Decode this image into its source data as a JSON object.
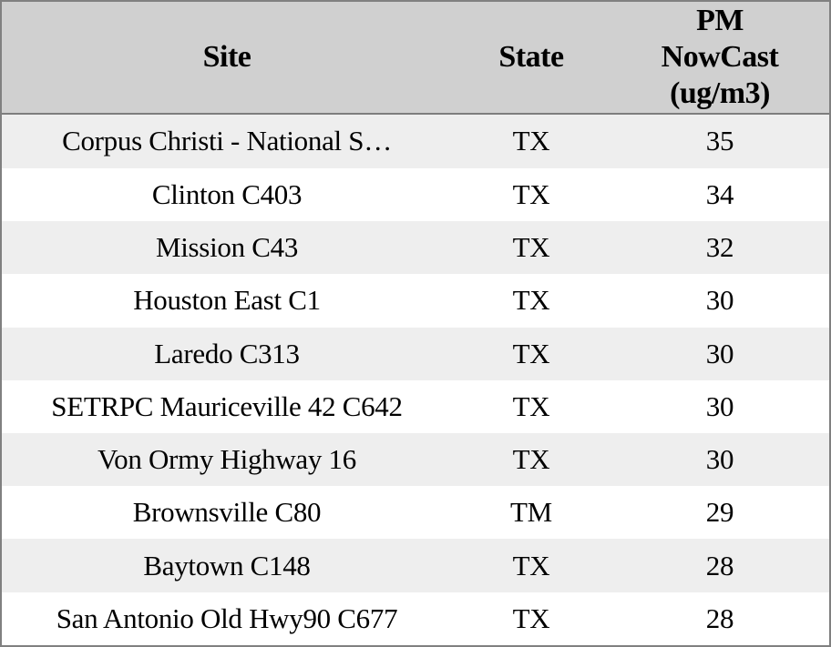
{
  "table": {
    "columns": [
      {
        "id": "site",
        "label": "Site"
      },
      {
        "id": "state",
        "label": "State"
      },
      {
        "id": "pm_nowcast",
        "label": "PM NowCast (ug/m3)",
        "lines": [
          "PM",
          "NowCast",
          "(ug/m3)"
        ]
      }
    ],
    "rows": [
      {
        "site": "Corpus Christi - National S…",
        "state": "TX",
        "pm": "35"
      },
      {
        "site": "Clinton C403",
        "state": "TX",
        "pm": "34"
      },
      {
        "site": "Mission C43",
        "state": "TX",
        "pm": "32"
      },
      {
        "site": "Houston East C1",
        "state": "TX",
        "pm": "30"
      },
      {
        "site": "Laredo C313",
        "state": "TX",
        "pm": "30"
      },
      {
        "site": "SETRPC Mauriceville 42 C642",
        "state": "TX",
        "pm": "30"
      },
      {
        "site": "Von Ormy Highway 16",
        "state": "TX",
        "pm": "30"
      },
      {
        "site": "Brownsville C80",
        "state": "TM",
        "pm": "29"
      },
      {
        "site": "Baytown C148",
        "state": "TX",
        "pm": "28"
      },
      {
        "site": "San Antonio Old Hwy90 C677",
        "state": "TX",
        "pm": "28"
      }
    ]
  },
  "colors": {
    "header_bg": "#d0d0d0",
    "row_alt_bg": "#eeeeee",
    "row_bg": "#ffffff",
    "border": "#808080",
    "header_separator": "#7d7d7d",
    "text": "#000000"
  }
}
